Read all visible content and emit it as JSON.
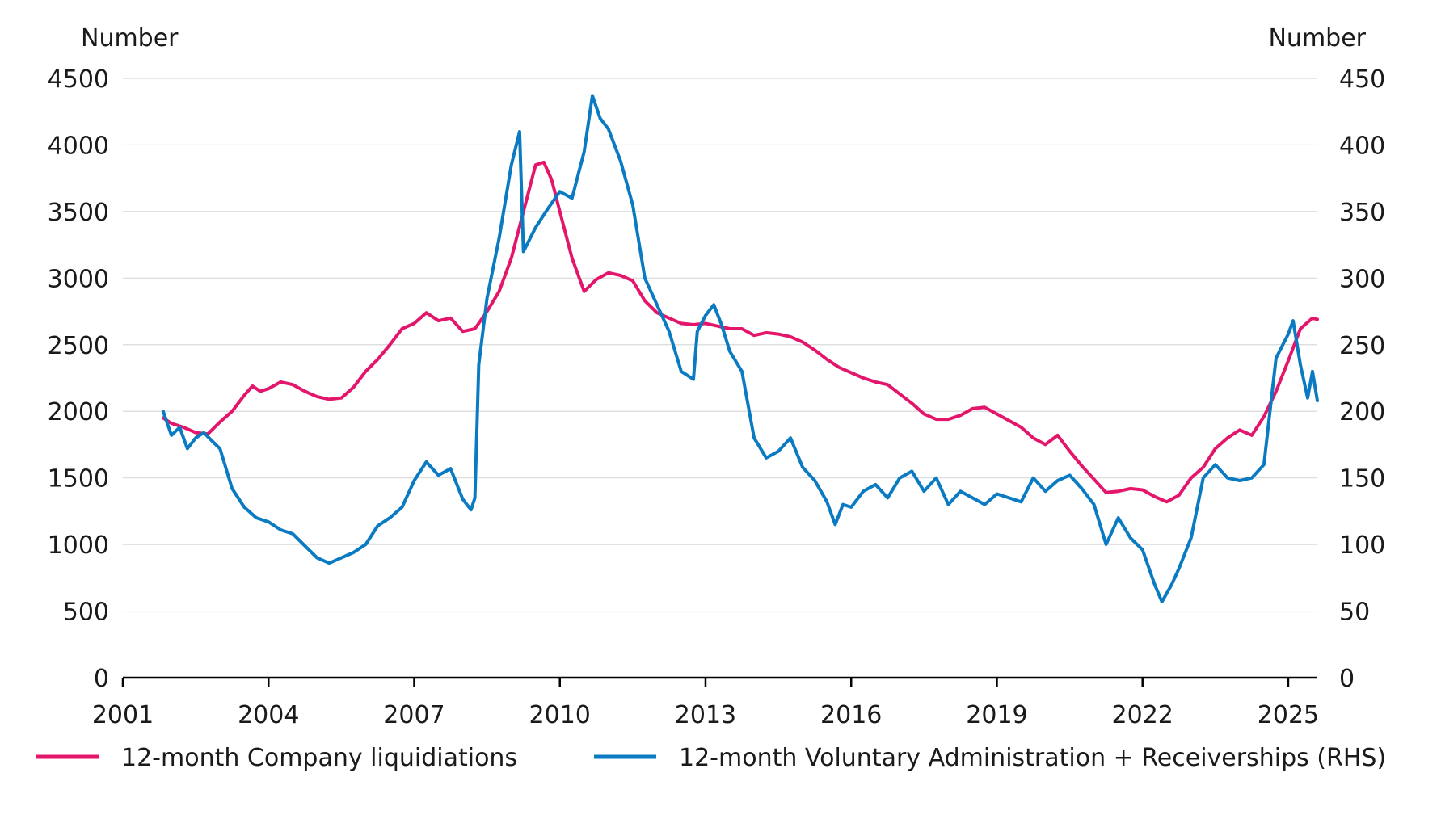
{
  "chart_data": {
    "type": "line",
    "title": "",
    "y_left_label": "Number",
    "y_right_label": "Number",
    "y_left_ticks": [
      "0",
      "500",
      "1000",
      "1500",
      "2000",
      "2500",
      "3000",
      "3500",
      "4000",
      "4500"
    ],
    "y_right_ticks": [
      "0",
      "50",
      "100",
      "150",
      "200",
      "250",
      "300",
      "350",
      "400",
      "450"
    ],
    "x_ticks": [
      "2001",
      "2004",
      "2007",
      "2010",
      "2013",
      "2016",
      "2019",
      "2022",
      "2025"
    ],
    "xlim": [
      2001,
      2025.6
    ],
    "ylim_left": [
      0,
      4500
    ],
    "ylim_right": [
      0,
      450
    ],
    "grid": "horizontal",
    "legend_position": "bottom",
    "series": [
      {
        "name": "12-month Company liquidiations",
        "axis": "left",
        "color": "#e4166b",
        "points": [
          [
            2001.83,
            1950
          ],
          [
            2002.0,
            1910
          ],
          [
            2002.25,
            1880
          ],
          [
            2002.5,
            1840
          ],
          [
            2002.75,
            1830
          ],
          [
            2003.0,
            1920
          ],
          [
            2003.25,
            2000
          ],
          [
            2003.5,
            2120
          ],
          [
            2003.67,
            2190
          ],
          [
            2003.83,
            2150
          ],
          [
            2004.0,
            2170
          ],
          [
            2004.25,
            2220
          ],
          [
            2004.5,
            2200
          ],
          [
            2004.75,
            2150
          ],
          [
            2005.0,
            2110
          ],
          [
            2005.25,
            2090
          ],
          [
            2005.5,
            2100
          ],
          [
            2005.75,
            2180
          ],
          [
            2006.0,
            2300
          ],
          [
            2006.25,
            2390
          ],
          [
            2006.5,
            2500
          ],
          [
            2006.75,
            2620
          ],
          [
            2007.0,
            2660
          ],
          [
            2007.25,
            2740
          ],
          [
            2007.5,
            2680
          ],
          [
            2007.75,
            2700
          ],
          [
            2008.0,
            2600
          ],
          [
            2008.25,
            2620
          ],
          [
            2008.5,
            2750
          ],
          [
            2008.75,
            2900
          ],
          [
            2009.0,
            3150
          ],
          [
            2009.25,
            3500
          ],
          [
            2009.5,
            3850
          ],
          [
            2009.67,
            3870
          ],
          [
            2009.83,
            3740
          ],
          [
            2010.0,
            3500
          ],
          [
            2010.25,
            3150
          ],
          [
            2010.5,
            2900
          ],
          [
            2010.75,
            2990
          ],
          [
            2011.0,
            3040
          ],
          [
            2011.25,
            3020
          ],
          [
            2011.5,
            2980
          ],
          [
            2011.75,
            2830
          ],
          [
            2012.0,
            2740
          ],
          [
            2012.25,
            2700
          ],
          [
            2012.5,
            2660
          ],
          [
            2012.75,
            2650
          ],
          [
            2013.0,
            2660
          ],
          [
            2013.25,
            2640
          ],
          [
            2013.5,
            2620
          ],
          [
            2013.75,
            2620
          ],
          [
            2014.0,
            2570
          ],
          [
            2014.25,
            2590
          ],
          [
            2014.5,
            2580
          ],
          [
            2014.75,
            2560
          ],
          [
            2015.0,
            2520
          ],
          [
            2015.25,
            2460
          ],
          [
            2015.5,
            2390
          ],
          [
            2015.75,
            2330
          ],
          [
            2016.0,
            2290
          ],
          [
            2016.25,
            2250
          ],
          [
            2016.5,
            2220
          ],
          [
            2016.75,
            2200
          ],
          [
            2017.0,
            2130
          ],
          [
            2017.25,
            2060
          ],
          [
            2017.5,
            1980
          ],
          [
            2017.75,
            1940
          ],
          [
            2018.0,
            1940
          ],
          [
            2018.25,
            1970
          ],
          [
            2018.5,
            2020
          ],
          [
            2018.75,
            2030
          ],
          [
            2019.0,
            1980
          ],
          [
            2019.25,
            1930
          ],
          [
            2019.5,
            1880
          ],
          [
            2019.75,
            1800
          ],
          [
            2020.0,
            1750
          ],
          [
            2020.25,
            1820
          ],
          [
            2020.5,
            1700
          ],
          [
            2020.75,
            1590
          ],
          [
            2021.0,
            1490
          ],
          [
            2021.25,
            1390
          ],
          [
            2021.5,
            1400
          ],
          [
            2021.75,
            1420
          ],
          [
            2022.0,
            1410
          ],
          [
            2022.25,
            1360
          ],
          [
            2022.5,
            1320
          ],
          [
            2022.75,
            1370
          ],
          [
            2023.0,
            1500
          ],
          [
            2023.25,
            1580
          ],
          [
            2023.5,
            1720
          ],
          [
            2023.75,
            1800
          ],
          [
            2024.0,
            1860
          ],
          [
            2024.25,
            1820
          ],
          [
            2024.5,
            1960
          ],
          [
            2024.75,
            2150
          ],
          [
            2025.0,
            2380
          ],
          [
            2025.25,
            2620
          ],
          [
            2025.5,
            2700
          ],
          [
            2025.6,
            2690
          ]
        ]
      },
      {
        "name": "12-month Voluntary Administration + Receiverships (RHS)",
        "axis": "right",
        "color": "#0a7bc2",
        "points": [
          [
            2001.83,
            200
          ],
          [
            2002.0,
            182
          ],
          [
            2002.17,
            188
          ],
          [
            2002.33,
            172
          ],
          [
            2002.5,
            180
          ],
          [
            2002.67,
            184
          ],
          [
            2002.83,
            178
          ],
          [
            2003.0,
            172
          ],
          [
            2003.25,
            142
          ],
          [
            2003.5,
            128
          ],
          [
            2003.75,
            120
          ],
          [
            2004.0,
            117
          ],
          [
            2004.25,
            111
          ],
          [
            2004.5,
            108
          ],
          [
            2004.75,
            99
          ],
          [
            2005.0,
            90
          ],
          [
            2005.25,
            86
          ],
          [
            2005.5,
            90
          ],
          [
            2005.75,
            94
          ],
          [
            2006.0,
            100
          ],
          [
            2006.25,
            114
          ],
          [
            2006.5,
            120
          ],
          [
            2006.75,
            128
          ],
          [
            2007.0,
            148
          ],
          [
            2007.25,
            162
          ],
          [
            2007.5,
            152
          ],
          [
            2007.75,
            157
          ],
          [
            2008.0,
            134
          ],
          [
            2008.17,
            126
          ],
          [
            2008.25,
            135
          ],
          [
            2008.33,
            235
          ],
          [
            2008.5,
            285
          ],
          [
            2008.75,
            330
          ],
          [
            2009.0,
            385
          ],
          [
            2009.17,
            410
          ],
          [
            2009.25,
            320
          ],
          [
            2009.5,
            338
          ],
          [
            2009.75,
            352
          ],
          [
            2010.0,
            365
          ],
          [
            2010.25,
            360
          ],
          [
            2010.5,
            395
          ],
          [
            2010.67,
            437
          ],
          [
            2010.83,
            420
          ],
          [
            2011.0,
            412
          ],
          [
            2011.25,
            388
          ],
          [
            2011.5,
            355
          ],
          [
            2011.75,
            300
          ],
          [
            2012.0,
            280
          ],
          [
            2012.25,
            260
          ],
          [
            2012.5,
            230
          ],
          [
            2012.75,
            224
          ],
          [
            2012.83,
            260
          ],
          [
            2013.0,
            272
          ],
          [
            2013.17,
            280
          ],
          [
            2013.33,
            265
          ],
          [
            2013.5,
            245
          ],
          [
            2013.75,
            230
          ],
          [
            2014.0,
            180
          ],
          [
            2014.25,
            165
          ],
          [
            2014.5,
            170
          ],
          [
            2014.75,
            180
          ],
          [
            2015.0,
            158
          ],
          [
            2015.25,
            148
          ],
          [
            2015.5,
            132
          ],
          [
            2015.67,
            115
          ],
          [
            2015.83,
            130
          ],
          [
            2016.0,
            128
          ],
          [
            2016.25,
            140
          ],
          [
            2016.5,
            145
          ],
          [
            2016.75,
            135
          ],
          [
            2017.0,
            150
          ],
          [
            2017.25,
            155
          ],
          [
            2017.5,
            140
          ],
          [
            2017.75,
            150
          ],
          [
            2018.0,
            130
          ],
          [
            2018.25,
            140
          ],
          [
            2018.5,
            135
          ],
          [
            2018.75,
            130
          ],
          [
            2019.0,
            138
          ],
          [
            2019.25,
            135
          ],
          [
            2019.5,
            132
          ],
          [
            2019.75,
            150
          ],
          [
            2020.0,
            140
          ],
          [
            2020.25,
            148
          ],
          [
            2020.5,
            152
          ],
          [
            2020.75,
            142
          ],
          [
            2021.0,
            130
          ],
          [
            2021.25,
            100
          ],
          [
            2021.5,
            120
          ],
          [
            2021.75,
            105
          ],
          [
            2022.0,
            96
          ],
          [
            2022.25,
            70
          ],
          [
            2022.4,
            57
          ],
          [
            2022.6,
            70
          ],
          [
            2022.75,
            82
          ],
          [
            2023.0,
            105
          ],
          [
            2023.25,
            150
          ],
          [
            2023.5,
            160
          ],
          [
            2023.75,
            150
          ],
          [
            2024.0,
            148
          ],
          [
            2024.25,
            150
          ],
          [
            2024.5,
            160
          ],
          [
            2024.75,
            240
          ],
          [
            2025.0,
            258
          ],
          [
            2025.1,
            268
          ],
          [
            2025.25,
            235
          ],
          [
            2025.4,
            210
          ],
          [
            2025.5,
            230
          ],
          [
            2025.6,
            208
          ]
        ]
      }
    ]
  }
}
